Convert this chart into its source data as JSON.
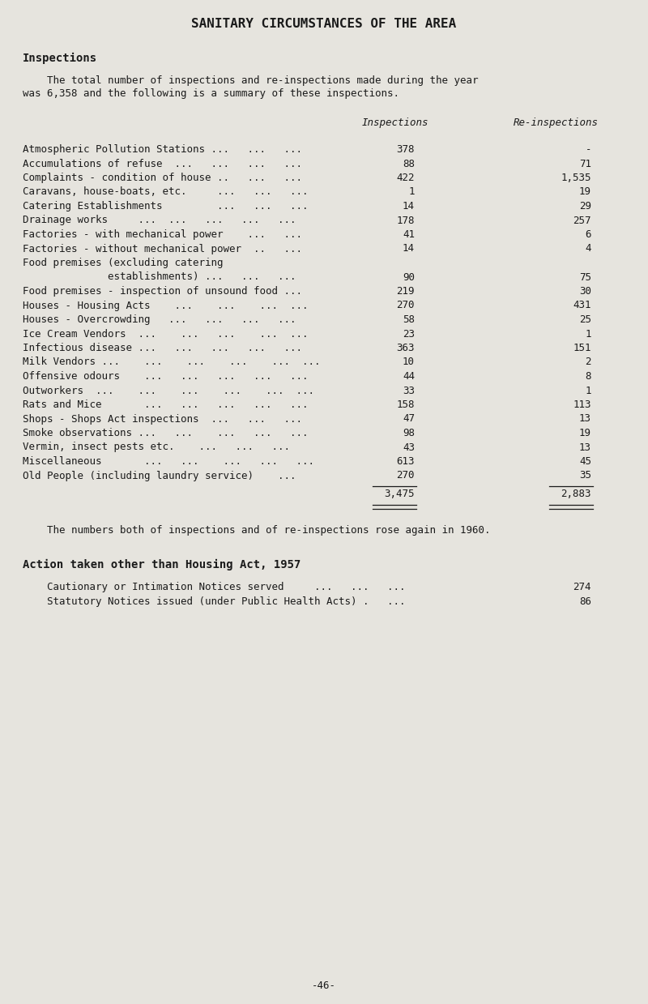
{
  "title": "SANITARY CIRCUMSTANCES OF THE AREA",
  "section_heading": "Inspections",
  "intro_line1": "    The total number of inspections and re-inspections made during the year",
  "intro_line2": "was 6,358 and the following is a summary of these inspections.",
  "col_header_inspections": "Inspections",
  "col_header_reinspections": "Re-inspections",
  "rows": [
    {
      "label": "Atmospheric Pollution Stations ...   ...   ...",
      "inspections": "378",
      "reinspections": "-"
    },
    {
      "label": "Accumulations of refuse  ...   ...   ...   ...",
      "inspections": "88",
      "reinspections": "71"
    },
    {
      "label": "Complaints - condition of house ..   ...   ...",
      "inspections": "422",
      "reinspections": "1,535"
    },
    {
      "label": "Caravans, house-boats, etc.     ...   ...   ...",
      "inspections": "1",
      "reinspections": "19"
    },
    {
      "label": "Catering Establishments         ...   ...   ...",
      "inspections": "14",
      "reinspections": "29"
    },
    {
      "label": "Drainage works     ...  ...   ...   ...   ...",
      "inspections": "178",
      "reinspections": "257"
    },
    {
      "label": "Factories - with mechanical power    ...   ...",
      "inspections": "41",
      "reinspections": "6"
    },
    {
      "label": "Factories - without mechanical power  ..   ...",
      "inspections": "14",
      "reinspections": "4"
    },
    {
      "label": "Food premises (excluding catering",
      "inspections": "",
      "reinspections": ""
    },
    {
      "label": "              establishments) ...   ...   ...",
      "inspections": "90",
      "reinspections": "75"
    },
    {
      "label": "Food premises - inspection of unsound food ...",
      "inspections": "219",
      "reinspections": "30"
    },
    {
      "label": "Houses - Housing Acts    ...    ...    ...  ...",
      "inspections": "270",
      "reinspections": "431"
    },
    {
      "label": "Houses - Overcrowding   ...   ...   ...   ...",
      "inspections": "58",
      "reinspections": "25"
    },
    {
      "label": "Ice Cream Vendors  ...    ...   ...    ...  ...",
      "inspections": "23",
      "reinspections": "1"
    },
    {
      "label": "Infectious disease ...   ...   ...   ...   ...",
      "inspections": "363",
      "reinspections": "151"
    },
    {
      "label": "Milk Vendors ...    ...    ...    ...    ...  ...",
      "inspections": "10",
      "reinspections": "2"
    },
    {
      "label": "Offensive odours    ...   ...   ...   ...   ...",
      "inspections": "44",
      "reinspections": "8"
    },
    {
      "label": "Outworkers  ...    ...    ...    ...    ...  ...",
      "inspections": "33",
      "reinspections": "1"
    },
    {
      "label": "Rats and Mice       ...   ...   ...   ...   ...",
      "inspections": "158",
      "reinspections": "113"
    },
    {
      "label": "Shops - Shops Act inspections  ...   ...   ...",
      "inspections": "47",
      "reinspections": "13"
    },
    {
      "label": "Smoke observations ...   ...    ...   ...   ...",
      "inspections": "98",
      "reinspections": "19"
    },
    {
      "label": "Vermin, insect pests etc.    ...   ...   ...",
      "inspections": "43",
      "reinspections": "13"
    },
    {
      "label": "Miscellaneous       ...   ...    ...   ...   ...",
      "inspections": "613",
      "reinspections": "45"
    },
    {
      "label": "Old People (including laundry service)    ...",
      "inspections": "270",
      "reinspections": "35"
    }
  ],
  "total_inspections": "3,475",
  "total_reinspections": "2,883",
  "note_text": "    The numbers both of inspections and of re-inspections rose again in 1960.",
  "action_heading": "Action taken other than Housing Act, 1957",
  "action_rows": [
    {
      "label": "    Cautionary or Intimation Notices served     ...   ...   ...",
      "value": "274"
    },
    {
      "label": "    Statutory Notices issued (under Public Health Acts) .   ...",
      "value": "86"
    }
  ],
  "page_number": "-46-",
  "bg_color": "#e6e4de",
  "text_color": "#1a1a1a",
  "title_fontsize": 11.5,
  "heading_fontsize": 10,
  "body_fontsize": 9,
  "col_header_fontsize": 9
}
